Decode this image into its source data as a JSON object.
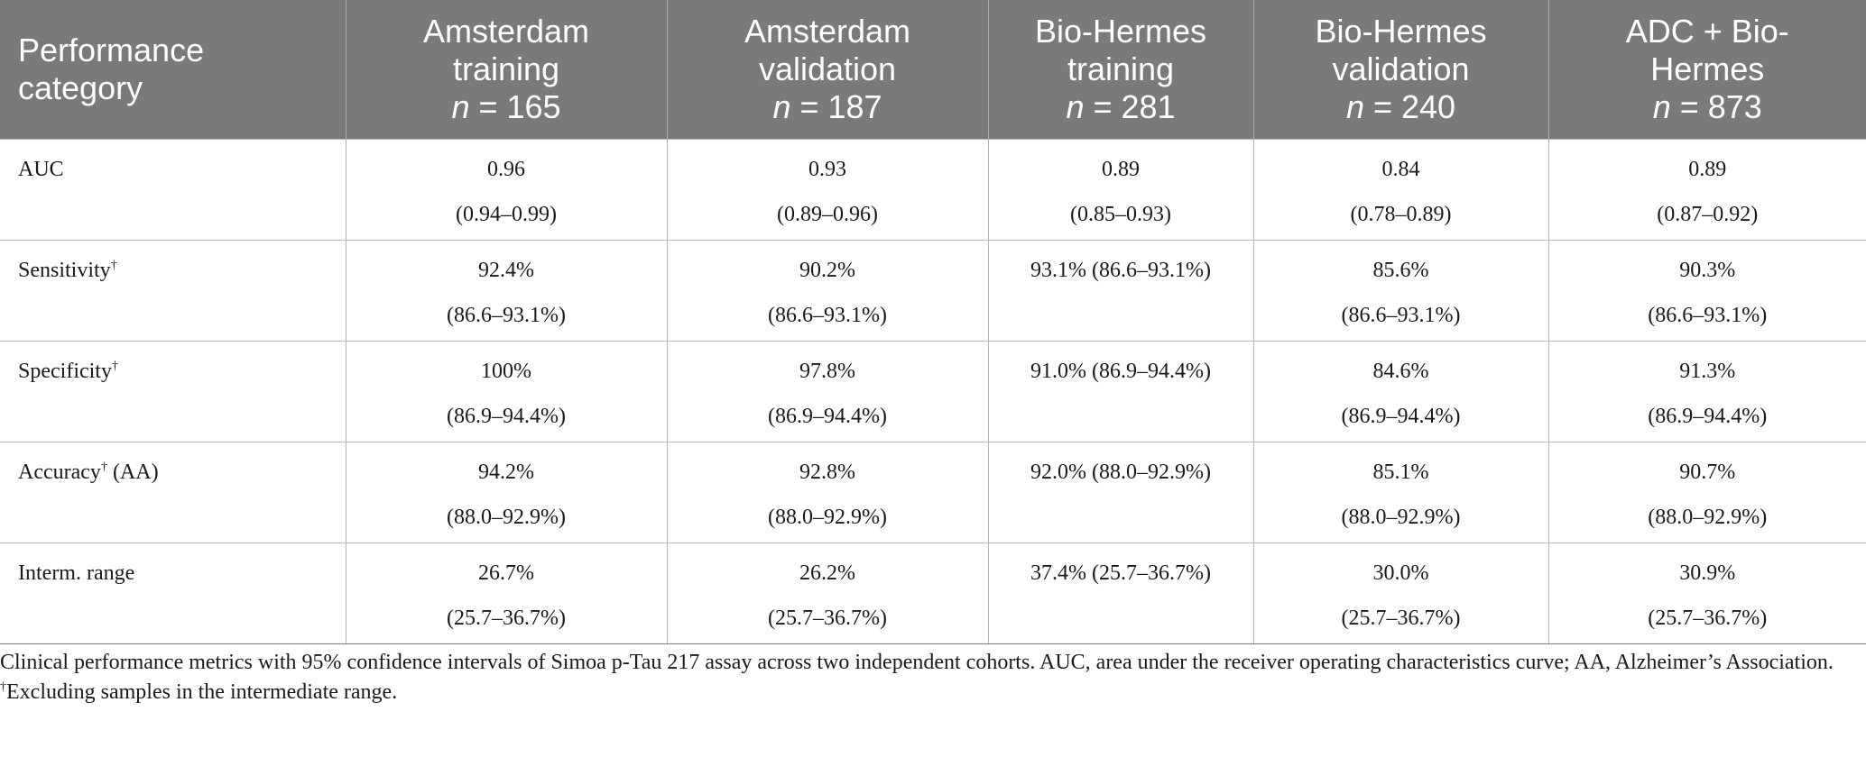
{
  "table": {
    "header": {
      "first": [
        "Performance",
        "category"
      ],
      "columns": [
        {
          "lines": [
            "Amsterdam",
            "training"
          ],
          "n_label": "n",
          "n_rest": " = 165"
        },
        {
          "lines": [
            "Amsterdam",
            "validation"
          ],
          "n_label": "n",
          "n_rest": " = 187"
        },
        {
          "lines": [
            "Bio-Hermes",
            "training"
          ],
          "n_label": "n",
          "n_rest": " = 281"
        },
        {
          "lines": [
            "Bio-Hermes",
            "validation"
          ],
          "n_label": "n",
          "n_rest": " = 240"
        },
        {
          "lines": [
            "ADC + Bio-",
            "Hermes"
          ],
          "n_label": "n",
          "n_rest": " = 873"
        }
      ]
    },
    "rows": [
      {
        "label": "AUC",
        "dagger": "",
        "suffix": "",
        "cells": [
          [
            "0.96",
            "(0.94–0.99)"
          ],
          [
            "0.93",
            "(0.89–0.96)"
          ],
          [
            "0.89",
            "(0.85–0.93)"
          ],
          [
            "0.84",
            "(0.78–0.89)"
          ],
          [
            "0.89",
            "(0.87–0.92)"
          ]
        ]
      },
      {
        "label": "Sensitivity",
        "dagger": "†",
        "suffix": "",
        "cells": [
          [
            "92.4%",
            "(86.6–93.1%)"
          ],
          [
            "90.2%",
            "(86.6–93.1%)"
          ],
          [
            "93.1% (86.6–93.1%)",
            ""
          ],
          [
            "85.6%",
            "(86.6–93.1%)"
          ],
          [
            "90.3%",
            "(86.6–93.1%)"
          ]
        ]
      },
      {
        "label": "Specificity",
        "dagger": "†",
        "suffix": "",
        "cells": [
          [
            "100%",
            "(86.9–94.4%)"
          ],
          [
            "97.8%",
            "(86.9–94.4%)"
          ],
          [
            "91.0% (86.9–94.4%)",
            ""
          ],
          [
            "84.6%",
            "(86.9–94.4%)"
          ],
          [
            "91.3%",
            "(86.9–94.4%)"
          ]
        ]
      },
      {
        "label": "Accuracy",
        "dagger": "†",
        "suffix": " (AA)",
        "cells": [
          [
            "94.2%",
            "(88.0–92.9%)"
          ],
          [
            "92.8%",
            "(88.0–92.9%)"
          ],
          [
            "92.0% (88.0–92.9%)",
            ""
          ],
          [
            "85.1%",
            "(88.0–92.9%)"
          ],
          [
            "90.7%",
            "(88.0–92.9%)"
          ]
        ]
      },
      {
        "label": "Interm. range",
        "dagger": "",
        "suffix": "",
        "cells": [
          [
            "26.7%",
            "(25.7–36.7%)"
          ],
          [
            "26.2%",
            "(25.7–36.7%)"
          ],
          [
            "37.4% (25.7–36.7%)",
            ""
          ],
          [
            "30.0%",
            "(25.7–36.7%)"
          ],
          [
            "30.9%",
            "(25.7–36.7%)"
          ]
        ]
      }
    ]
  },
  "notes": {
    "caption": "Clinical performance metrics with 95% confidence intervals of Simoa p-Tau 217 assay across two independent cohorts. AUC, area under the receiver operating characteristics curve; AA, Alzheimer’s Association.",
    "footnote_mark": "†",
    "footnote_text": "Excluding samples in the intermediate range."
  },
  "colors": {
    "header_bg": "#7a7a79",
    "header_text": "#ffffff",
    "grid": "#b5b5b5"
  }
}
